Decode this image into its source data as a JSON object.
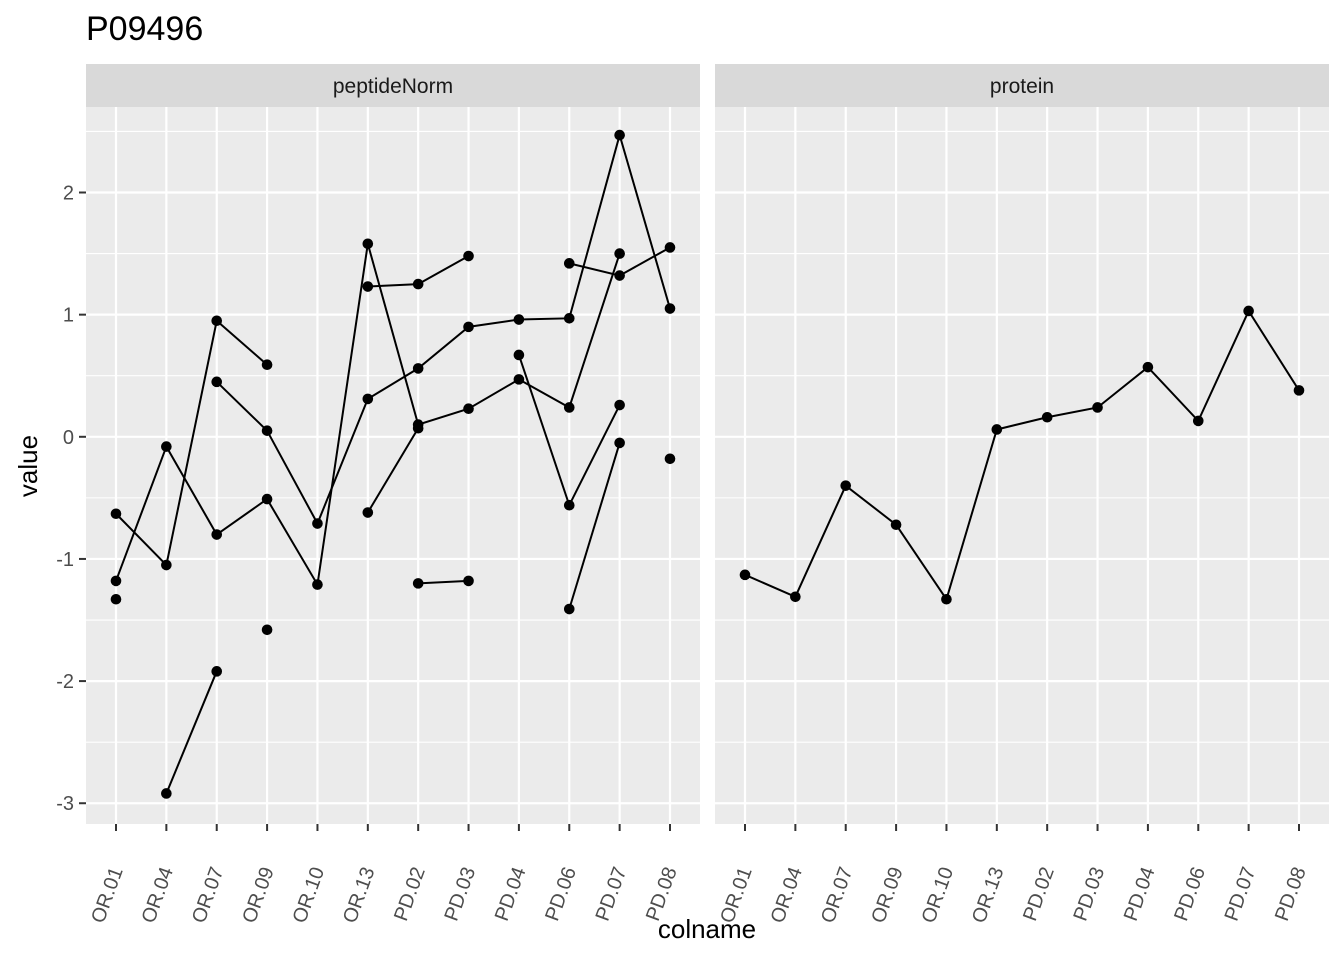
{
  "chart_data": {
    "type": "line",
    "title": "P09496",
    "xlabel": "colname",
    "ylabel": "value",
    "categories": [
      "OR.01",
      "OR.04",
      "OR.07",
      "OR.09",
      "OR.10",
      "OR.13",
      "PD.02",
      "PD.03",
      "PD.04",
      "PD.06",
      "PD.07",
      "PD.08"
    ],
    "ylim": [
      -3.17,
      2.7
    ],
    "yticks": [
      -3,
      -2,
      -1,
      0,
      1,
      2
    ],
    "ytick_labels": [
      "-3",
      "-2",
      "-1",
      "0",
      "1",
      "2"
    ],
    "grid": true,
    "facets": [
      {
        "name": "peptideNorm",
        "series": [
          {
            "values": [
              -0.63,
              -1.05,
              0.95,
              0.59,
              null,
              null,
              null,
              null,
              null,
              null,
              null,
              null
            ]
          },
          {
            "values": [
              -1.18,
              -0.08,
              -0.8,
              -0.51,
              -1.21,
              1.58,
              0.1,
              0.23,
              0.47,
              0.24,
              1.5,
              null
            ]
          },
          {
            "values": [
              -1.33,
              null,
              0.45,
              0.05,
              -0.71,
              0.31,
              0.56,
              0.9,
              0.96,
              0.97,
              2.47,
              1.05
            ]
          },
          {
            "values": [
              null,
              -2.92,
              -1.92,
              null,
              null,
              null,
              null,
              null,
              0.67,
              -0.56,
              0.26,
              null
            ]
          },
          {
            "values": [
              null,
              null,
              null,
              -1.58,
              null,
              null,
              null,
              null,
              null,
              null,
              null,
              null
            ]
          },
          {
            "values": [
              null,
              null,
              null,
              null,
              null,
              1.23,
              1.25,
              1.48,
              null,
              null,
              null,
              null
            ]
          },
          {
            "values": [
              null,
              null,
              null,
              null,
              null,
              -0.62,
              0.07,
              null,
              null,
              null,
              null,
              null
            ]
          },
          {
            "values": [
              null,
              null,
              null,
              null,
              null,
              null,
              -1.2,
              -1.18,
              null,
              null,
              null,
              null
            ]
          },
          {
            "values": [
              null,
              null,
              null,
              null,
              null,
              null,
              null,
              null,
              null,
              1.42,
              1.32,
              1.55
            ]
          },
          {
            "values": [
              null,
              null,
              null,
              null,
              null,
              null,
              null,
              null,
              null,
              -1.41,
              -0.05,
              null
            ]
          },
          {
            "values": [
              null,
              null,
              null,
              null,
              null,
              null,
              null,
              null,
              null,
              null,
              null,
              -0.18
            ]
          }
        ]
      },
      {
        "name": "protein",
        "series": [
          {
            "values": [
              -1.13,
              -1.31,
              -0.4,
              -0.72,
              -1.33,
              0.06,
              0.16,
              0.24,
              0.57,
              0.13,
              1.03,
              0.38
            ]
          }
        ]
      }
    ]
  }
}
